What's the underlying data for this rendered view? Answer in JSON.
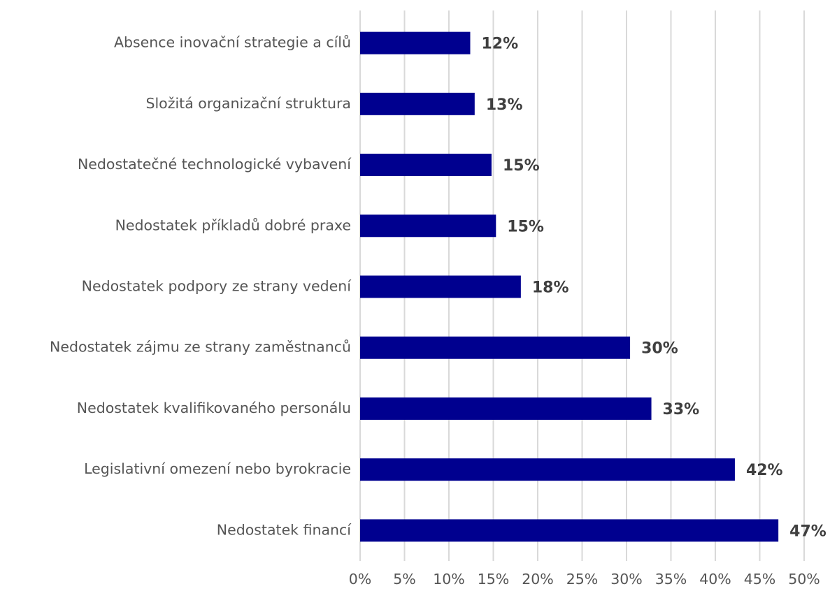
{
  "chart_data": {
    "type": "bar",
    "orientation": "horizontal",
    "categories": [
      "Absence inovační strategie a cílů",
      "Složitá organizační struktura",
      "Nedostatečné technologické vybavení",
      "Nedostatek příkladů dobré praxe",
      "Nedostatek podpory ze strany vedení",
      "Nedostatek zájmu ze strany zaměstnanců",
      "Nedostatek kvalifikovaného personálu",
      "Legislativní omezení nebo byrokracie",
      "Nedostatek financí"
    ],
    "values": [
      12.4,
      12.9,
      14.8,
      15.3,
      18.1,
      30.4,
      32.8,
      42.2,
      47.1
    ],
    "data_labels": [
      "12%",
      "13%",
      "15%",
      "15%",
      "18%",
      "30%",
      "33%",
      "42%",
      "47%"
    ],
    "xlim": [
      0,
      50
    ],
    "xticks": [
      0,
      5,
      10,
      15,
      20,
      25,
      30,
      35,
      40,
      45,
      50
    ],
    "xtick_labels": [
      "0%",
      "5%",
      "10%",
      "15%",
      "20%",
      "25%",
      "30%",
      "35%",
      "40%",
      "45%",
      "50%"
    ],
    "grid": "vertical",
    "legend": "none",
    "title": "",
    "xlabel": "",
    "ylabel": "",
    "colors": {
      "bar": "#00008f",
      "grid": "#d9d9d9",
      "text": "#555555",
      "data_label": "#3f3f3f"
    }
  }
}
